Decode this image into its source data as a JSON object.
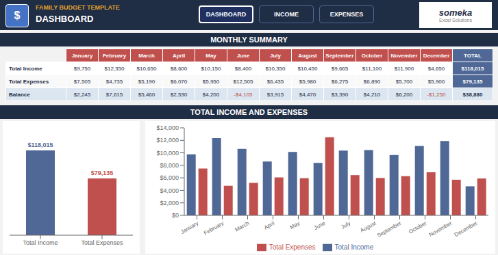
{
  "title": "FAMILY BUDGET TEMPLATE",
  "subtitle": "DASHBOARD",
  "annotations": [
    "$",
    "DASHBOARD",
    "INCOME",
    "EXPENSES",
    "someka",
    "Excel Solutions",
    "TOTAL INCOME AND EXPENSES"
  ],
  "chart_data": [
    {
      "type": "table",
      "title": "MONTHLY SUMMARY",
      "categories": [
        "January",
        "February",
        "March",
        "April",
        "May",
        "June",
        "July",
        "August",
        "September",
        "October",
        "November",
        "December",
        "TOTAL"
      ],
      "series": [
        {
          "name": "Total Income",
          "values": [
            9750,
            12350,
            10650,
            8600,
            10150,
            8400,
            10350,
            10450,
            9665,
            11100,
            11900,
            4650,
            118015
          ],
          "value_labels": [
            "$9,750",
            "$12,350",
            "$10,650",
            "$8,600",
            "$10,150",
            "$8,400",
            "$10,350",
            "$10,450",
            "$9,665",
            "$11,100",
            "$11,900",
            "$4,650",
            "$118,015"
          ]
        },
        {
          "name": "Total Expenses",
          "values": [
            7505,
            4735,
            5190,
            6070,
            5950,
            12505,
            6435,
            5980,
            6275,
            6890,
            5700,
            5900,
            79135
          ],
          "value_labels": [
            "$7,505",
            "$4,735",
            "$5,190",
            "$6,070",
            "$5,950",
            "$12,505",
            "$6,435",
            "$5,980",
            "$6,275",
            "$6,890",
            "$5,700",
            "$5,900",
            "$79,135"
          ]
        },
        {
          "name": "Balance",
          "values": [
            2245,
            7615,
            5460,
            2530,
            4200,
            -4105,
            3915,
            4470,
            3390,
            4210,
            6200,
            -1250,
            38880
          ],
          "value_labels": [
            "$2,245",
            "$7,615",
            "$5,460",
            "$2,530",
            "$4,200",
            "-$4,105",
            "$3,915",
            "$4,470",
            "$3,390",
            "$4,210",
            "$6,200",
            "-$1,250",
            "$38,880"
          ]
        }
      ]
    },
    {
      "type": "bar",
      "categories": [
        "Total Income",
        "Total Expenses"
      ],
      "values": [
        118015,
        79135
      ],
      "value_labels": [
        "$118,015",
        "$79,135"
      ],
      "colors": [
        "#4f6896",
        "#c0504d"
      ],
      "ylim": [
        0,
        140000
      ],
      "tick_labels": "x",
      "data_labels": true,
      "grid": false
    },
    {
      "type": "bar",
      "categories": [
        "January",
        "February",
        "March",
        "April",
        "May",
        "June",
        "July",
        "August",
        "September",
        "October",
        "November",
        "December"
      ],
      "series": [
        {
          "name": "Total Income",
          "color": "#4f6896",
          "values": [
            9750,
            12350,
            10650,
            8600,
            10150,
            8400,
            10350,
            10450,
            9665,
            11100,
            11900,
            4650
          ]
        },
        {
          "name": "Total Expenses",
          "color": "#c0504d",
          "values": [
            7505,
            4735,
            5190,
            6070,
            5950,
            12505,
            6435,
            5980,
            6275,
            6890,
            5700,
            5900
          ]
        }
      ],
      "ylim": [
        0,
        14000
      ],
      "yticks": [
        {
          "value": 0,
          "label": "$0"
        },
        {
          "value": 2000,
          "label": "$2,000"
        },
        {
          "value": 4000,
          "label": "$4,000"
        },
        {
          "value": 6000,
          "label": "$6,000"
        },
        {
          "value": 8000,
          "label": "$8,000"
        },
        {
          "value": 10000,
          "label": "$10,000"
        },
        {
          "value": 12000,
          "label": "$12,000"
        },
        {
          "value": 14000,
          "label": "$14,000"
        }
      ],
      "legend": "bottom",
      "grid": false
    }
  ]
}
